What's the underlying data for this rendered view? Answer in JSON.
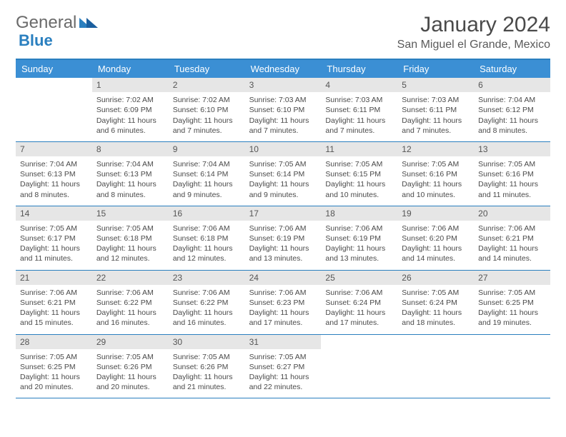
{
  "logo": {
    "text1": "General",
    "text2": "Blue"
  },
  "title": "January 2024",
  "location": "San Miguel el Grande, Mexico",
  "colors": {
    "header_bg": "#3b8fd4",
    "header_text": "#ffffff",
    "border": "#2a7fbf",
    "daynum_bg": "#e6e6e6",
    "text": "#4a4a4a"
  },
  "day_names": [
    "Sunday",
    "Monday",
    "Tuesday",
    "Wednesday",
    "Thursday",
    "Friday",
    "Saturday"
  ],
  "weeks": [
    [
      {
        "n": "",
        "lines": []
      },
      {
        "n": "1",
        "lines": [
          "Sunrise: 7:02 AM",
          "Sunset: 6:09 PM",
          "Daylight: 11 hours",
          "and 6 minutes."
        ]
      },
      {
        "n": "2",
        "lines": [
          "Sunrise: 7:02 AM",
          "Sunset: 6:10 PM",
          "Daylight: 11 hours",
          "and 7 minutes."
        ]
      },
      {
        "n": "3",
        "lines": [
          "Sunrise: 7:03 AM",
          "Sunset: 6:10 PM",
          "Daylight: 11 hours",
          "and 7 minutes."
        ]
      },
      {
        "n": "4",
        "lines": [
          "Sunrise: 7:03 AM",
          "Sunset: 6:11 PM",
          "Daylight: 11 hours",
          "and 7 minutes."
        ]
      },
      {
        "n": "5",
        "lines": [
          "Sunrise: 7:03 AM",
          "Sunset: 6:11 PM",
          "Daylight: 11 hours",
          "and 7 minutes."
        ]
      },
      {
        "n": "6",
        "lines": [
          "Sunrise: 7:04 AM",
          "Sunset: 6:12 PM",
          "Daylight: 11 hours",
          "and 8 minutes."
        ]
      }
    ],
    [
      {
        "n": "7",
        "lines": [
          "Sunrise: 7:04 AM",
          "Sunset: 6:13 PM",
          "Daylight: 11 hours",
          "and 8 minutes."
        ]
      },
      {
        "n": "8",
        "lines": [
          "Sunrise: 7:04 AM",
          "Sunset: 6:13 PM",
          "Daylight: 11 hours",
          "and 8 minutes."
        ]
      },
      {
        "n": "9",
        "lines": [
          "Sunrise: 7:04 AM",
          "Sunset: 6:14 PM",
          "Daylight: 11 hours",
          "and 9 minutes."
        ]
      },
      {
        "n": "10",
        "lines": [
          "Sunrise: 7:05 AM",
          "Sunset: 6:14 PM",
          "Daylight: 11 hours",
          "and 9 minutes."
        ]
      },
      {
        "n": "11",
        "lines": [
          "Sunrise: 7:05 AM",
          "Sunset: 6:15 PM",
          "Daylight: 11 hours",
          "and 10 minutes."
        ]
      },
      {
        "n": "12",
        "lines": [
          "Sunrise: 7:05 AM",
          "Sunset: 6:16 PM",
          "Daylight: 11 hours",
          "and 10 minutes."
        ]
      },
      {
        "n": "13",
        "lines": [
          "Sunrise: 7:05 AM",
          "Sunset: 6:16 PM",
          "Daylight: 11 hours",
          "and 11 minutes."
        ]
      }
    ],
    [
      {
        "n": "14",
        "lines": [
          "Sunrise: 7:05 AM",
          "Sunset: 6:17 PM",
          "Daylight: 11 hours",
          "and 11 minutes."
        ]
      },
      {
        "n": "15",
        "lines": [
          "Sunrise: 7:05 AM",
          "Sunset: 6:18 PM",
          "Daylight: 11 hours",
          "and 12 minutes."
        ]
      },
      {
        "n": "16",
        "lines": [
          "Sunrise: 7:06 AM",
          "Sunset: 6:18 PM",
          "Daylight: 11 hours",
          "and 12 minutes."
        ]
      },
      {
        "n": "17",
        "lines": [
          "Sunrise: 7:06 AM",
          "Sunset: 6:19 PM",
          "Daylight: 11 hours",
          "and 13 minutes."
        ]
      },
      {
        "n": "18",
        "lines": [
          "Sunrise: 7:06 AM",
          "Sunset: 6:19 PM",
          "Daylight: 11 hours",
          "and 13 minutes."
        ]
      },
      {
        "n": "19",
        "lines": [
          "Sunrise: 7:06 AM",
          "Sunset: 6:20 PM",
          "Daylight: 11 hours",
          "and 14 minutes."
        ]
      },
      {
        "n": "20",
        "lines": [
          "Sunrise: 7:06 AM",
          "Sunset: 6:21 PM",
          "Daylight: 11 hours",
          "and 14 minutes."
        ]
      }
    ],
    [
      {
        "n": "21",
        "lines": [
          "Sunrise: 7:06 AM",
          "Sunset: 6:21 PM",
          "Daylight: 11 hours",
          "and 15 minutes."
        ]
      },
      {
        "n": "22",
        "lines": [
          "Sunrise: 7:06 AM",
          "Sunset: 6:22 PM",
          "Daylight: 11 hours",
          "and 16 minutes."
        ]
      },
      {
        "n": "23",
        "lines": [
          "Sunrise: 7:06 AM",
          "Sunset: 6:22 PM",
          "Daylight: 11 hours",
          "and 16 minutes."
        ]
      },
      {
        "n": "24",
        "lines": [
          "Sunrise: 7:06 AM",
          "Sunset: 6:23 PM",
          "Daylight: 11 hours",
          "and 17 minutes."
        ]
      },
      {
        "n": "25",
        "lines": [
          "Sunrise: 7:06 AM",
          "Sunset: 6:24 PM",
          "Daylight: 11 hours",
          "and 17 minutes."
        ]
      },
      {
        "n": "26",
        "lines": [
          "Sunrise: 7:05 AM",
          "Sunset: 6:24 PM",
          "Daylight: 11 hours",
          "and 18 minutes."
        ]
      },
      {
        "n": "27",
        "lines": [
          "Sunrise: 7:05 AM",
          "Sunset: 6:25 PM",
          "Daylight: 11 hours",
          "and 19 minutes."
        ]
      }
    ],
    [
      {
        "n": "28",
        "lines": [
          "Sunrise: 7:05 AM",
          "Sunset: 6:25 PM",
          "Daylight: 11 hours",
          "and 20 minutes."
        ]
      },
      {
        "n": "29",
        "lines": [
          "Sunrise: 7:05 AM",
          "Sunset: 6:26 PM",
          "Daylight: 11 hours",
          "and 20 minutes."
        ]
      },
      {
        "n": "30",
        "lines": [
          "Sunrise: 7:05 AM",
          "Sunset: 6:26 PM",
          "Daylight: 11 hours",
          "and 21 minutes."
        ]
      },
      {
        "n": "31",
        "lines": [
          "Sunrise: 7:05 AM",
          "Sunset: 6:27 PM",
          "Daylight: 11 hours",
          "and 22 minutes."
        ]
      },
      {
        "n": "",
        "lines": []
      },
      {
        "n": "",
        "lines": []
      },
      {
        "n": "",
        "lines": []
      }
    ]
  ]
}
